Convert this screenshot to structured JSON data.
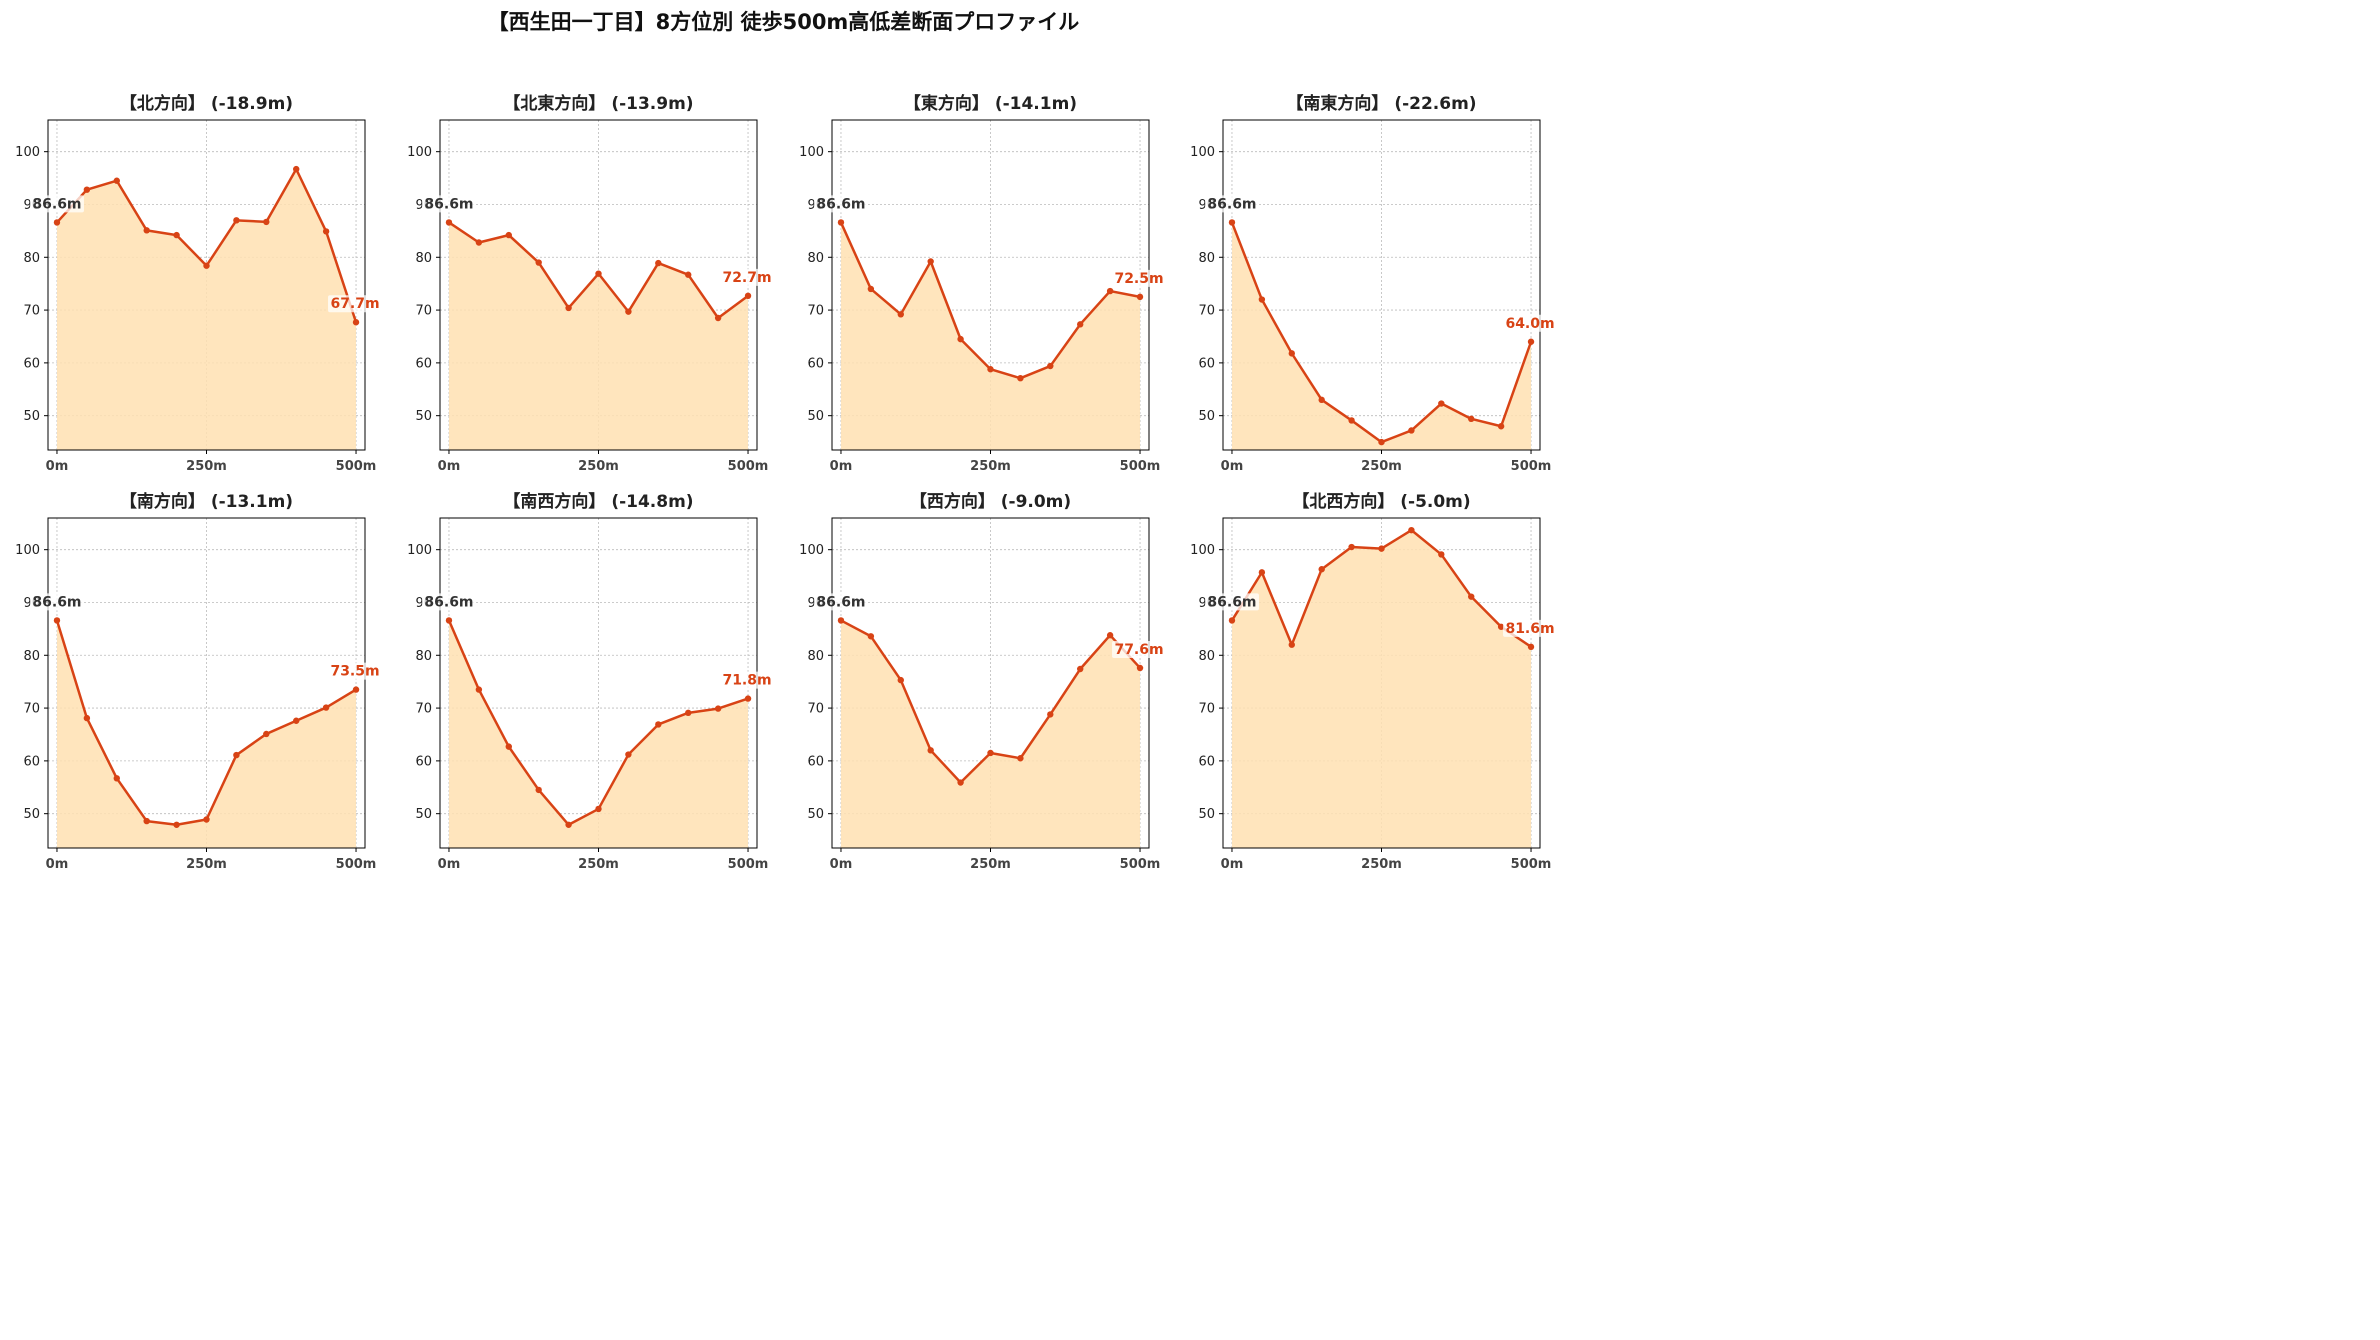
{
  "title": "【西生田一丁目】8方位別 徒歩500m高低差断面プロファイル",
  "colors": {
    "line": "#d84315",
    "fill": "#ffe0b2",
    "grid": "#bbbbbb",
    "start_label": "#333333",
    "end_label": "#d84315"
  },
  "chart_data": [
    {
      "type": "area",
      "title": "【北方向】 (-18.9m)",
      "x": [
        0,
        50,
        100,
        150,
        200,
        250,
        300,
        350,
        400,
        450,
        500
      ],
      "values": [
        86.6,
        92.8,
        94.5,
        85.1,
        84.2,
        78.4,
        87.0,
        86.7,
        96.7,
        84.9,
        67.7
      ],
      "x_tick_labels": [
        "0m",
        "250m",
        "500m"
      ],
      "yticks": [
        50,
        60,
        70,
        80,
        90,
        100
      ],
      "ylim": [
        43.5,
        106
      ],
      "xlim": [
        -15,
        515
      ],
      "start_label": "86.6m",
      "end_label": "67.7m",
      "grid": true
    },
    {
      "type": "area",
      "title": "【北東方向】 (-13.9m)",
      "x": [
        0,
        50,
        100,
        150,
        200,
        250,
        300,
        350,
        400,
        450,
        500
      ],
      "values": [
        86.6,
        82.8,
        84.2,
        79.0,
        70.4,
        76.9,
        69.7,
        78.9,
        76.7,
        68.5,
        72.7
      ],
      "x_tick_labels": [
        "0m",
        "250m",
        "500m"
      ],
      "yticks": [
        50,
        60,
        70,
        80,
        90,
        100
      ],
      "ylim": [
        43.5,
        106
      ],
      "xlim": [
        -15,
        515
      ],
      "start_label": "86.6m",
      "end_label": "72.7m",
      "grid": true
    },
    {
      "type": "area",
      "title": "【東方向】 (-14.1m)",
      "x": [
        0,
        50,
        100,
        150,
        200,
        250,
        300,
        350,
        400,
        450,
        500
      ],
      "values": [
        86.6,
        74.0,
        69.2,
        79.2,
        64.5,
        58.8,
        57.1,
        59.4,
        67.3,
        73.6,
        72.5
      ],
      "x_tick_labels": [
        "0m",
        "250m",
        "500m"
      ],
      "yticks": [
        50,
        60,
        70,
        80,
        90,
        100
      ],
      "ylim": [
        43.5,
        106
      ],
      "xlim": [
        -15,
        515
      ],
      "start_label": "86.6m",
      "end_label": "72.5m",
      "grid": true
    },
    {
      "type": "area",
      "title": "【南東方向】 (-22.6m)",
      "x": [
        0,
        50,
        100,
        150,
        200,
        250,
        300,
        350,
        400,
        450,
        500
      ],
      "values": [
        86.6,
        72.0,
        61.8,
        53.0,
        49.1,
        45.0,
        47.2,
        52.3,
        49.4,
        48.0,
        64.0
      ],
      "x_tick_labels": [
        "0m",
        "250m",
        "500m"
      ],
      "yticks": [
        50,
        60,
        70,
        80,
        90,
        100
      ],
      "ylim": [
        43.5,
        106
      ],
      "xlim": [
        -15,
        515
      ],
      "start_label": "86.6m",
      "end_label": "64.0m",
      "grid": true
    },
    {
      "type": "area",
      "title": "【南方向】 (-13.1m)",
      "x": [
        0,
        50,
        100,
        150,
        200,
        250,
        300,
        350,
        400,
        450,
        500
      ],
      "values": [
        86.6,
        68.1,
        56.7,
        48.6,
        47.9,
        48.9,
        61.1,
        65.1,
        67.6,
        70.1,
        73.5
      ],
      "x_tick_labels": [
        "0m",
        "250m",
        "500m"
      ],
      "yticks": [
        50,
        60,
        70,
        80,
        90,
        100
      ],
      "ylim": [
        43.5,
        106
      ],
      "xlim": [
        -15,
        515
      ],
      "start_label": "86.6m",
      "end_label": "73.5m",
      "grid": true
    },
    {
      "type": "area",
      "title": "【南西方向】 (-14.8m)",
      "x": [
        0,
        50,
        100,
        150,
        200,
        250,
        300,
        350,
        400,
        450,
        500
      ],
      "values": [
        86.6,
        73.5,
        62.7,
        54.5,
        47.9,
        50.9,
        61.2,
        66.9,
        69.1,
        69.9,
        71.8
      ],
      "x_tick_labels": [
        "0m",
        "250m",
        "500m"
      ],
      "yticks": [
        50,
        60,
        70,
        80,
        90,
        100
      ],
      "ylim": [
        43.5,
        106
      ],
      "xlim": [
        -15,
        515
      ],
      "start_label": "86.6m",
      "end_label": "71.8m",
      "grid": true
    },
    {
      "type": "area",
      "title": "【西方向】 (-9.0m)",
      "x": [
        0,
        50,
        100,
        150,
        200,
        250,
        300,
        350,
        400,
        450,
        500
      ],
      "values": [
        86.6,
        83.6,
        75.3,
        62.0,
        55.9,
        61.5,
        60.5,
        68.8,
        77.4,
        83.8,
        77.6
      ],
      "x_tick_labels": [
        "0m",
        "250m",
        "500m"
      ],
      "yticks": [
        50,
        60,
        70,
        80,
        90,
        100
      ],
      "ylim": [
        43.5,
        106
      ],
      "xlim": [
        -15,
        515
      ],
      "start_label": "86.6m",
      "end_label": "77.6m",
      "grid": true
    },
    {
      "type": "area",
      "title": "【北西方向】 (-5.0m)",
      "x": [
        0,
        50,
        100,
        150,
        200,
        250,
        300,
        350,
        400,
        450,
        500
      ],
      "values": [
        86.6,
        95.7,
        82.0,
        96.3,
        100.5,
        100.2,
        103.7,
        99.1,
        91.1,
        85.4,
        81.6
      ],
      "x_tick_labels": [
        "0m",
        "250m",
        "500m"
      ],
      "yticks": [
        50,
        60,
        70,
        80,
        90,
        100
      ],
      "ylim": [
        43.5,
        106
      ],
      "xlim": [
        -15,
        515
      ],
      "start_label": "86.6m",
      "end_label": "81.6m",
      "grid": true
    }
  ]
}
